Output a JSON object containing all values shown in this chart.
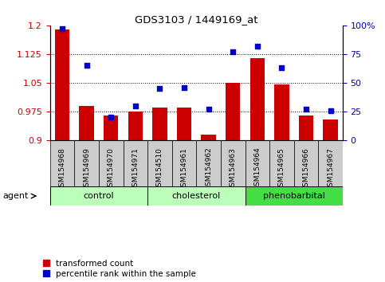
{
  "title": "GDS3103 / 1449169_at",
  "samples": [
    "GSM154968",
    "GSM154969",
    "GSM154970",
    "GSM154971",
    "GSM154510",
    "GSM154961",
    "GSM154962",
    "GSM154963",
    "GSM154964",
    "GSM154965",
    "GSM154966",
    "GSM154967"
  ],
  "bar_values": [
    1.19,
    0.99,
    0.965,
    0.975,
    0.985,
    0.985,
    0.915,
    1.05,
    1.115,
    1.045,
    0.965,
    0.955
  ],
  "scatter_values": [
    97,
    65,
    20,
    30,
    45,
    46,
    27,
    77,
    82,
    63,
    27,
    26
  ],
  "ylim_left": [
    0.9,
    1.2
  ],
  "ylim_right": [
    0,
    100
  ],
  "yticks_left": [
    0.9,
    0.975,
    1.05,
    1.125,
    1.2
  ],
  "yticks_right": [
    0,
    25,
    50,
    75,
    100
  ],
  "ytick_labels_left": [
    "0.9",
    "0.975",
    "1.05",
    "1.125",
    "1.2"
  ],
  "ytick_labels_right": [
    "0",
    "25",
    "50",
    "75",
    "100%"
  ],
  "bar_color": "#cc0000",
  "scatter_color": "#0000cc",
  "bar_base": 0.9,
  "groups": [
    {
      "label": "control",
      "indices": [
        0,
        1,
        2,
        3
      ],
      "color": "#bbffbb"
    },
    {
      "label": "cholesterol",
      "indices": [
        4,
        5,
        6,
        7
      ],
      "color": "#bbffbb"
    },
    {
      "label": "phenobarbital",
      "indices": [
        8,
        9,
        10,
        11
      ],
      "color": "#44dd44"
    }
  ],
  "xlabel_agent": "agent",
  "legend_bar_label": "transformed count",
  "legend_scatter_label": "percentile rank within the sample",
  "grid_yticks": [
    0.975,
    1.05,
    1.125
  ],
  "background_plot": "#ffffff",
  "background_fig": "#ffffff",
  "xtick_bg": "#cccccc"
}
